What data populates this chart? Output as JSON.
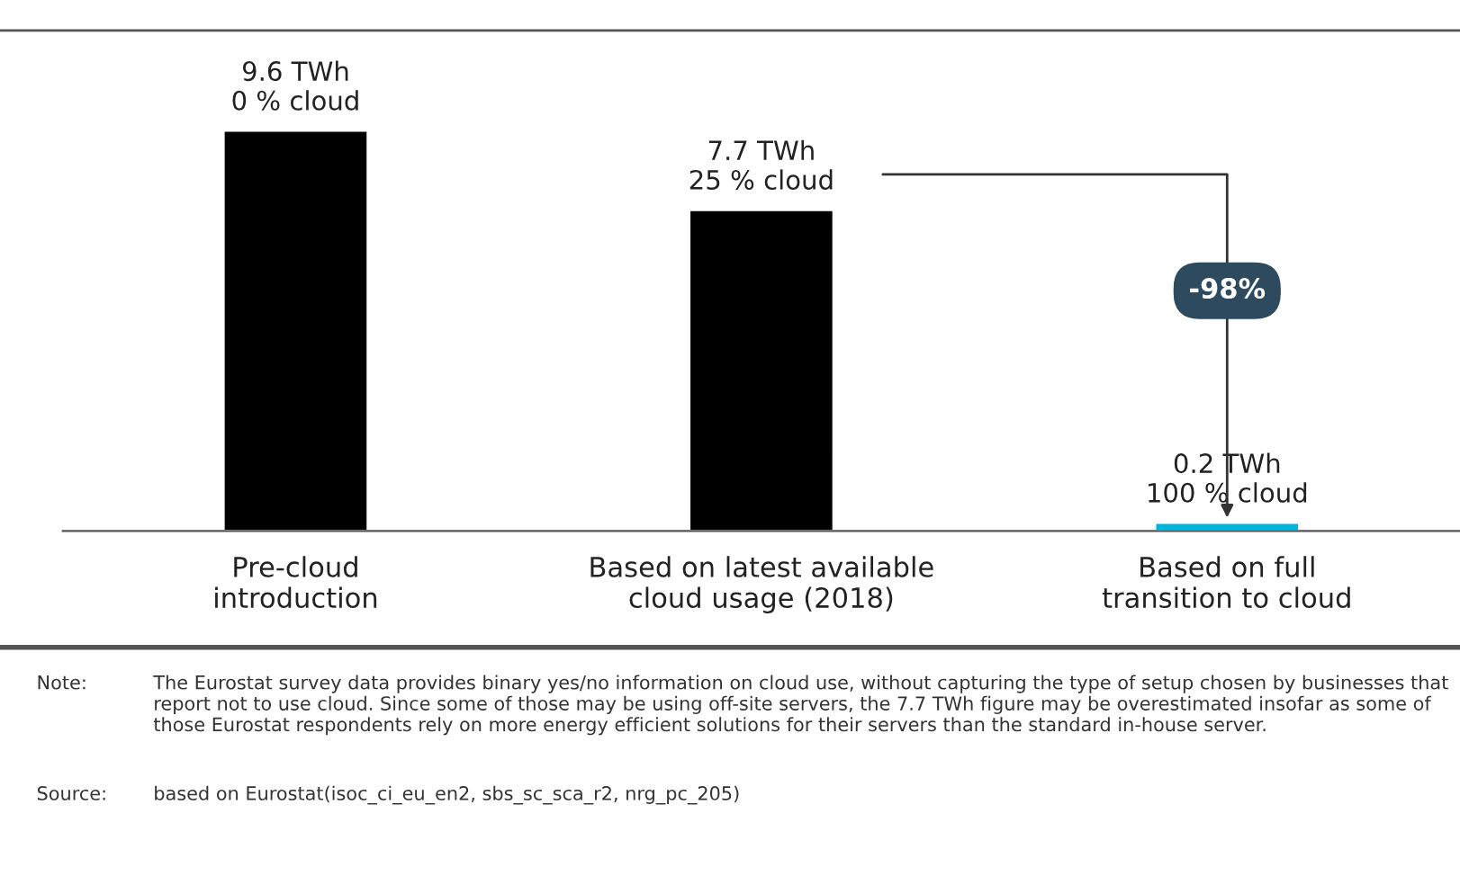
{
  "chart_data": {
    "type": "bar",
    "categories": [
      "Pre-cloud\nintroduction",
      "Based on latest available\ncloud usage (2018)",
      "Based on full\ntransition to cloud"
    ],
    "values": [
      9.6,
      7.7,
      0.2
    ],
    "colors": [
      "#000000",
      "#000000",
      "#00b4dc"
    ],
    "value_labels": [
      "9.6 TWh\n0 % cloud",
      "7.7 TWh\n25 % cloud",
      "0.2 TWh\n100 % cloud"
    ],
    "tick_labels": "x",
    "grid": false,
    "legend": false,
    "annotations": [
      "-98%",
      "Note:\tThe Eurostat survey data provides binary yes/no information on cloud use, without capturing the type of setup chosen by businesses that report not to use cloud. Since some of those may be using off-site servers, the 7.7 TWh figure may be overestimated insofar as some of those Eurostat respondents rely on more energy efficient solutions for their servers than the standard in-house server.",
      "Source:\tbased on Eurostat(isoc_ci_eu_en2, sbs_sc_sca_r2, nrg_pc_205)"
    ]
  }
}
